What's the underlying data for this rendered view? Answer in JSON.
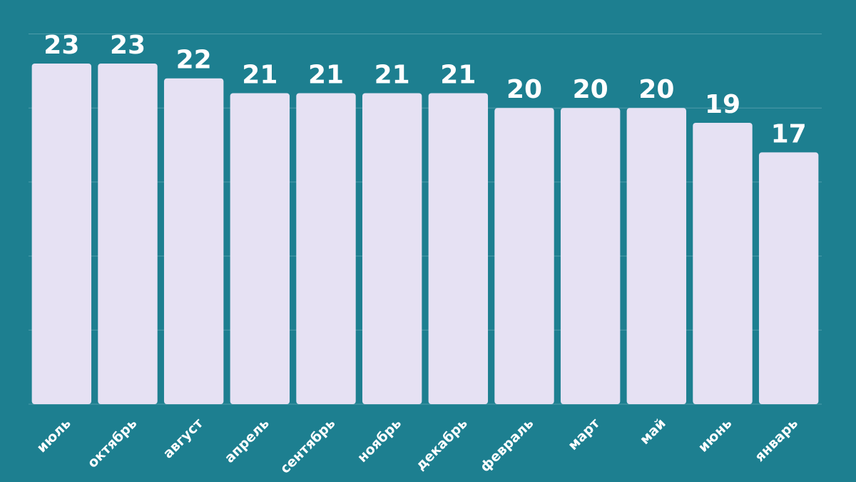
{
  "chart_data": {
    "type": "bar",
    "categories": [
      "июль",
      "октябрь",
      "август",
      "апрель",
      "сентябрь",
      "ноябрь",
      "декабрь",
      "февраль",
      "март",
      "май",
      "июнь",
      "январь"
    ],
    "values": [
      23,
      23,
      22,
      21,
      21,
      21,
      21,
      20,
      20,
      20,
      19,
      17
    ],
    "color": "#e6e1f3",
    "ylim": [
      0,
      25
    ],
    "yticks": [
      0,
      5,
      10,
      15,
      20,
      25
    ],
    "grid": true
  }
}
